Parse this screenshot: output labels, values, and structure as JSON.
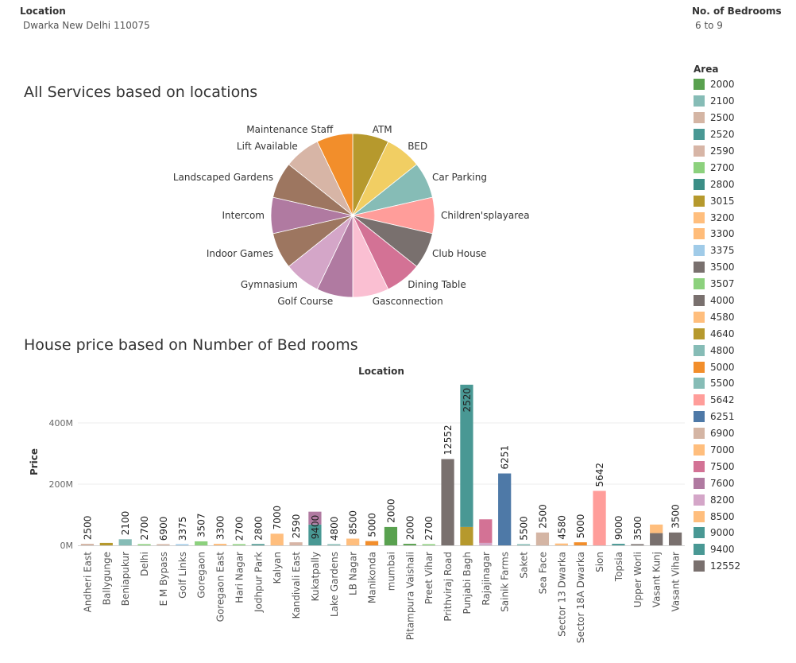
{
  "filters": {
    "location": {
      "title": "Location",
      "value": "Dwarka New Delhi 110075"
    },
    "bedrooms": {
      "title": "No. of Bedrooms",
      "value": "6 to 9"
    }
  },
  "pie_title": "All Services based on locations",
  "bar_title": "House price based on Number of Bed rooms",
  "legend": {
    "title": "Area",
    "items": [
      {
        "label": "2000",
        "color": "#59a14f"
      },
      {
        "label": "2100",
        "color": "#86bcb6"
      },
      {
        "label": "2500",
        "color": "#d4b5a4"
      },
      {
        "label": "2520",
        "color": "#499894"
      },
      {
        "label": "2590",
        "color": "#d7b5a6"
      },
      {
        "label": "2700",
        "color": "#8cd17d"
      },
      {
        "label": "2800",
        "color": "#3b8e86"
      },
      {
        "label": "3015",
        "color": "#b6992d"
      },
      {
        "label": "3200",
        "color": "#ffbe7d"
      },
      {
        "label": "3300",
        "color": "#ffbc79"
      },
      {
        "label": "3375",
        "color": "#a0cbe8"
      },
      {
        "label": "3500",
        "color": "#79706e"
      },
      {
        "label": "3507",
        "color": "#8cd17d"
      },
      {
        "label": "4000",
        "color": "#79706e"
      },
      {
        "label": "4580",
        "color": "#ffbe7d"
      },
      {
        "label": "4640",
        "color": "#b6992d"
      },
      {
        "label": "4800",
        "color": "#86bcb6"
      },
      {
        "label": "5000",
        "color": "#f28e2b"
      },
      {
        "label": "5500",
        "color": "#86bcb6"
      },
      {
        "label": "5642",
        "color": "#ff9d9a"
      },
      {
        "label": "6251",
        "color": "#4e79a7"
      },
      {
        "label": "6900",
        "color": "#d4b5a4"
      },
      {
        "label": "7000",
        "color": "#ffbe7d"
      },
      {
        "label": "7500",
        "color": "#d37295"
      },
      {
        "label": "7600",
        "color": "#b07aa1"
      },
      {
        "label": "8200",
        "color": "#d4a6c8"
      },
      {
        "label": "8500",
        "color": "#ffbe7d"
      },
      {
        "label": "9000",
        "color": "#499894"
      },
      {
        "label": "9400",
        "color": "#499894"
      },
      {
        "label": "12552",
        "color": "#79706e"
      }
    ]
  },
  "chart_data": [
    {
      "type": "pie",
      "title": "All Services based on locations",
      "slices": [
        {
          "label": "ATM",
          "value": 1,
          "color": "#b6992d"
        },
        {
          "label": "BED",
          "value": 1,
          "color": "#f1ce63"
        },
        {
          "label": "Car Parking",
          "value": 1,
          "color": "#86bcb6"
        },
        {
          "label": "Children'splayarea",
          "value": 1,
          "color": "#ff9d9a"
        },
        {
          "label": "Club House",
          "value": 1,
          "color": "#79706e"
        },
        {
          "label": "Dining Table",
          "value": 1,
          "color": "#d37295"
        },
        {
          "label": "Gasconnection",
          "value": 1,
          "color": "#fabfd2"
        },
        {
          "label": "Golf Course",
          "value": 1,
          "color": "#b07aa1"
        },
        {
          "label": "Gymnasium",
          "value": 1,
          "color": "#d4a6c8"
        },
        {
          "label": "Indoor Games",
          "value": 1,
          "color": "#9d7660"
        },
        {
          "label": "Intercom",
          "value": 1,
          "color": "#b07aa1"
        },
        {
          "label": "Landscaped Gardens",
          "value": 1,
          "color": "#9d7660"
        },
        {
          "label": "Lift Available",
          "value": 1,
          "color": "#d7b5a6"
        },
        {
          "label": "Maintenance Staff",
          "value": 1,
          "color": "#f28e2b"
        }
      ]
    },
    {
      "type": "bar",
      "title": "House price based on Number of Bed rooms",
      "xlabel": "Location",
      "ylabel": "Price",
      "ylim": [
        0,
        530
      ],
      "y_unit": "M",
      "y_ticks": [
        0,
        200,
        400
      ],
      "y_tick_labels": [
        "0M",
        "200M",
        "400M"
      ],
      "grid": true,
      "bars": [
        {
          "category": "Andheri East",
          "label": "2500",
          "segments": [
            {
              "value": 5,
              "color": "#d4b5a4"
            }
          ]
        },
        {
          "category": "Ballygunge",
          "label": "",
          "segments": [
            {
              "value": 8,
              "color": "#b6992d"
            }
          ]
        },
        {
          "category": "Beniapukur",
          "label": "2100",
          "segments": [
            {
              "value": 20,
              "color": "#86bcb6"
            }
          ]
        },
        {
          "category": "Delhi",
          "label": "2700",
          "segments": [
            {
              "value": 4,
              "color": "#8cd17d"
            }
          ]
        },
        {
          "category": "E M Bypass",
          "label": "6900",
          "segments": [
            {
              "value": 2,
              "color": "#d4b5a4"
            }
          ]
        },
        {
          "category": "Golf Links",
          "label": "3375",
          "segments": [
            {
              "value": 2,
              "color": "#a0cbe8"
            }
          ]
        },
        {
          "category": "Goregaon",
          "label": "3507",
          "segments": [
            {
              "value": 13,
              "color": "#8cd17d"
            }
          ]
        },
        {
          "category": "Goregaon East",
          "label": "3300",
          "segments": [
            {
              "value": 5,
              "color": "#ffbc79"
            }
          ]
        },
        {
          "category": "Hari Nagar",
          "label": "2700",
          "segments": [
            {
              "value": 2,
              "color": "#8cd17d"
            }
          ]
        },
        {
          "category": "Jodhpur Park",
          "label": "2800",
          "segments": [
            {
              "value": 3,
              "color": "#3b8e86"
            }
          ]
        },
        {
          "category": "Kalyan",
          "label": "7000",
          "segments": [
            {
              "value": 38,
              "color": "#ffbe7d"
            }
          ]
        },
        {
          "category": "Kandivali East",
          "label": "2590",
          "segments": [
            {
              "value": 10,
              "color": "#d7b5a6"
            }
          ]
        },
        {
          "category": "Kukatpally",
          "label": "9400",
          "label_inside": true,
          "segments": [
            {
              "value": 68,
              "color": "#499894"
            },
            {
              "value": 42,
              "color": "#b07aa1"
            }
          ]
        },
        {
          "category": "Lake Gardens",
          "label": "4800",
          "segments": [
            {
              "value": 2,
              "color": "#86bcb6"
            }
          ]
        },
        {
          "category": "LB Nagar",
          "label": "8500",
          "segments": [
            {
              "value": 22,
              "color": "#ffbe7d"
            }
          ]
        },
        {
          "category": "Manikonda",
          "label": "5000",
          "segments": [
            {
              "value": 14,
              "color": "#f28e2b"
            }
          ]
        },
        {
          "category": "mumbai",
          "label": "2000",
          "segments": [
            {
              "value": 60,
              "color": "#59a14f"
            }
          ]
        },
        {
          "category": "Pitampura Vaishali",
          "label": "2000",
          "segments": [
            {
              "value": 5,
              "color": "#59a14f"
            }
          ]
        },
        {
          "category": "Preet Vihar",
          "label": "2700",
          "segments": [
            {
              "value": 3,
              "color": "#8cd17d"
            }
          ]
        },
        {
          "category": "Prithviraj Road",
          "label": "12552",
          "segments": [
            {
              "value": 282,
              "color": "#79706e"
            }
          ]
        },
        {
          "category": "Punjabi Bagh",
          "label": "2520",
          "label_inside": true,
          "segments": [
            {
              "value": 60,
              "color": "#b6992d"
            },
            {
              "value": 465,
              "color": "#499894"
            }
          ]
        },
        {
          "category": "Rajajinagar",
          "label": "",
          "segments": [
            {
              "value": 8,
              "color": "#d4a6c8"
            },
            {
              "value": 77,
              "color": "#d37295"
            }
          ]
        },
        {
          "category": "Sainik Farms",
          "label": "6251",
          "segments": [
            {
              "value": 235,
              "color": "#4e79a7"
            }
          ]
        },
        {
          "category": "Saket",
          "label": "5500",
          "segments": [
            {
              "value": 3,
              "color": "#86bcb6"
            }
          ]
        },
        {
          "category": "Sea Face",
          "label": "2500",
          "segments": [
            {
              "value": 42,
              "color": "#d4b5a4"
            }
          ]
        },
        {
          "category": "Sector 13 Dwarka",
          "label": "4580",
          "segments": [
            {
              "value": 6,
              "color": "#ffbe7d"
            }
          ]
        },
        {
          "category": "Sector 18A Dwarka",
          "label": "5000",
          "segments": [
            {
              "value": 10,
              "color": "#f28e2b"
            }
          ]
        },
        {
          "category": "Sion",
          "label": "5642",
          "segments": [
            {
              "value": 178,
              "color": "#ff9d9a"
            }
          ]
        },
        {
          "category": "Topsia",
          "label": "9000",
          "segments": [
            {
              "value": 5,
              "color": "#499894"
            }
          ]
        },
        {
          "category": "Upper Worli",
          "label": "3500",
          "segments": [
            {
              "value": 3,
              "color": "#79706e"
            }
          ]
        },
        {
          "category": "Vasant Kunj",
          "label": "",
          "segments": [
            {
              "value": 40,
              "color": "#79706e"
            },
            {
              "value": 28,
              "color": "#ffbe7d"
            }
          ]
        },
        {
          "category": "Vasant Vihar",
          "label": "3500",
          "segments": [
            {
              "value": 42,
              "color": "#79706e"
            }
          ]
        }
      ]
    }
  ]
}
